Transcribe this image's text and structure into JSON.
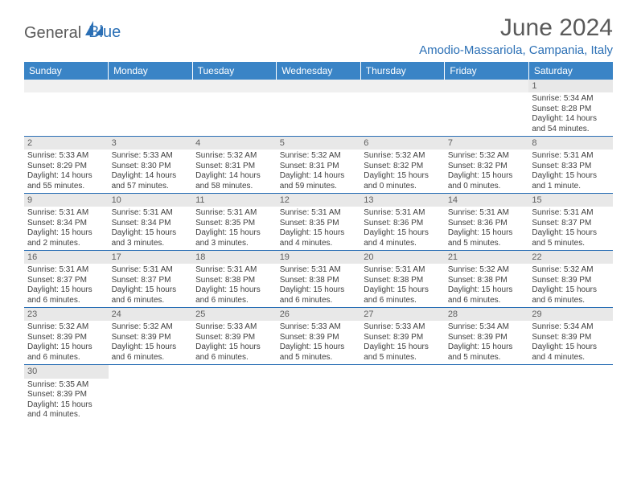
{
  "brand": {
    "part1": "General",
    "part2": "Blue",
    "logo_fill": "#2a6fb5"
  },
  "title": "June 2024",
  "location": "Amodio-Massariola, Campania, Italy",
  "colors": {
    "header_bg": "#3a84c6",
    "header_text": "#ffffff",
    "daynum_bg": "#e8e8e8",
    "border": "#2a6fb5",
    "body_text": "#404040",
    "title_text": "#5a5a5a"
  },
  "day_headers": [
    "Sunday",
    "Monday",
    "Tuesday",
    "Wednesday",
    "Thursday",
    "Friday",
    "Saturday"
  ],
  "weeks": [
    [
      null,
      null,
      null,
      null,
      null,
      null,
      {
        "n": "1",
        "sr": "5:34 AM",
        "ss": "8:28 PM",
        "dl": "14 hours and 54 minutes."
      }
    ],
    [
      {
        "n": "2",
        "sr": "5:33 AM",
        "ss": "8:29 PM",
        "dl": "14 hours and 55 minutes."
      },
      {
        "n": "3",
        "sr": "5:33 AM",
        "ss": "8:30 PM",
        "dl": "14 hours and 57 minutes."
      },
      {
        "n": "4",
        "sr": "5:32 AM",
        "ss": "8:31 PM",
        "dl": "14 hours and 58 minutes."
      },
      {
        "n": "5",
        "sr": "5:32 AM",
        "ss": "8:31 PM",
        "dl": "14 hours and 59 minutes."
      },
      {
        "n": "6",
        "sr": "5:32 AM",
        "ss": "8:32 PM",
        "dl": "15 hours and 0 minutes."
      },
      {
        "n": "7",
        "sr": "5:32 AM",
        "ss": "8:32 PM",
        "dl": "15 hours and 0 minutes."
      },
      {
        "n": "8",
        "sr": "5:31 AM",
        "ss": "8:33 PM",
        "dl": "15 hours and 1 minute."
      }
    ],
    [
      {
        "n": "9",
        "sr": "5:31 AM",
        "ss": "8:34 PM",
        "dl": "15 hours and 2 minutes."
      },
      {
        "n": "10",
        "sr": "5:31 AM",
        "ss": "8:34 PM",
        "dl": "15 hours and 3 minutes."
      },
      {
        "n": "11",
        "sr": "5:31 AM",
        "ss": "8:35 PM",
        "dl": "15 hours and 3 minutes."
      },
      {
        "n": "12",
        "sr": "5:31 AM",
        "ss": "8:35 PM",
        "dl": "15 hours and 4 minutes."
      },
      {
        "n": "13",
        "sr": "5:31 AM",
        "ss": "8:36 PM",
        "dl": "15 hours and 4 minutes."
      },
      {
        "n": "14",
        "sr": "5:31 AM",
        "ss": "8:36 PM",
        "dl": "15 hours and 5 minutes."
      },
      {
        "n": "15",
        "sr": "5:31 AM",
        "ss": "8:37 PM",
        "dl": "15 hours and 5 minutes."
      }
    ],
    [
      {
        "n": "16",
        "sr": "5:31 AM",
        "ss": "8:37 PM",
        "dl": "15 hours and 6 minutes."
      },
      {
        "n": "17",
        "sr": "5:31 AM",
        "ss": "8:37 PM",
        "dl": "15 hours and 6 minutes."
      },
      {
        "n": "18",
        "sr": "5:31 AM",
        "ss": "8:38 PM",
        "dl": "15 hours and 6 minutes."
      },
      {
        "n": "19",
        "sr": "5:31 AM",
        "ss": "8:38 PM",
        "dl": "15 hours and 6 minutes."
      },
      {
        "n": "20",
        "sr": "5:31 AM",
        "ss": "8:38 PM",
        "dl": "15 hours and 6 minutes."
      },
      {
        "n": "21",
        "sr": "5:32 AM",
        "ss": "8:38 PM",
        "dl": "15 hours and 6 minutes."
      },
      {
        "n": "22",
        "sr": "5:32 AM",
        "ss": "8:39 PM",
        "dl": "15 hours and 6 minutes."
      }
    ],
    [
      {
        "n": "23",
        "sr": "5:32 AM",
        "ss": "8:39 PM",
        "dl": "15 hours and 6 minutes."
      },
      {
        "n": "24",
        "sr": "5:32 AM",
        "ss": "8:39 PM",
        "dl": "15 hours and 6 minutes."
      },
      {
        "n": "25",
        "sr": "5:33 AM",
        "ss": "8:39 PM",
        "dl": "15 hours and 6 minutes."
      },
      {
        "n": "26",
        "sr": "5:33 AM",
        "ss": "8:39 PM",
        "dl": "15 hours and 5 minutes."
      },
      {
        "n": "27",
        "sr": "5:33 AM",
        "ss": "8:39 PM",
        "dl": "15 hours and 5 minutes."
      },
      {
        "n": "28",
        "sr": "5:34 AM",
        "ss": "8:39 PM",
        "dl": "15 hours and 5 minutes."
      },
      {
        "n": "29",
        "sr": "5:34 AM",
        "ss": "8:39 PM",
        "dl": "15 hours and 4 minutes."
      }
    ],
    [
      {
        "n": "30",
        "sr": "5:35 AM",
        "ss": "8:39 PM",
        "dl": "15 hours and 4 minutes."
      },
      null,
      null,
      null,
      null,
      null,
      null
    ]
  ],
  "labels": {
    "sunrise": "Sunrise:",
    "sunset": "Sunset:",
    "daylight": "Daylight:"
  }
}
